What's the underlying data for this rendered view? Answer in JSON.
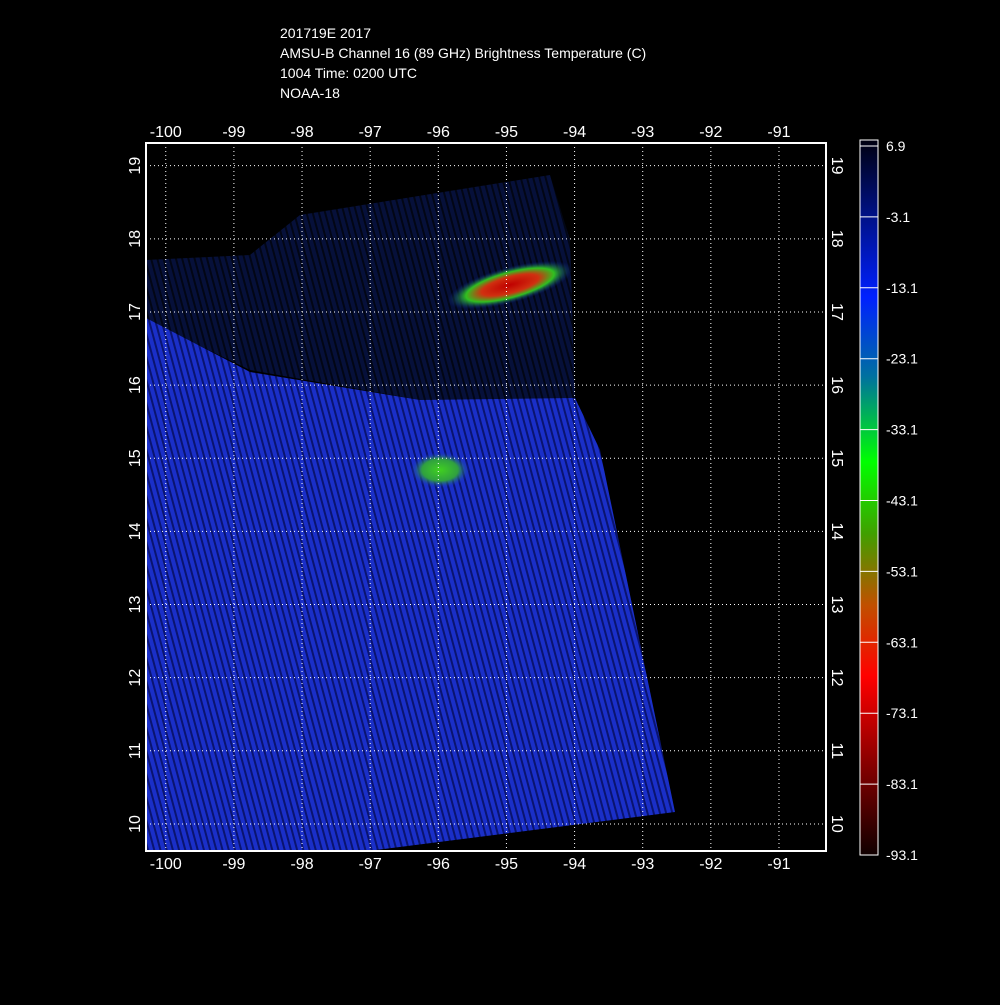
{
  "header": {
    "lines": [
      "201719E 2017",
      "AMSU-B Channel 16 (89 GHz) Brightness Temperature (C)",
      "1004 Time: 0200 UTC",
      "NOAA-18"
    ]
  },
  "map": {
    "xlim": [
      -100.29,
      -90.31
    ],
    "ylim": [
      9.63,
      19.31
    ],
    "xticks": [
      -100,
      -99,
      -98,
      -97,
      -96,
      -95,
      -94,
      -93,
      -92,
      -91
    ],
    "yticks": [
      10,
      11,
      12,
      13,
      14,
      15,
      16,
      17,
      18,
      19
    ],
    "grid": true
  },
  "colorbar": {
    "clim": [
      -93.1,
      6.9
    ],
    "ticks": [
      6.9,
      -3.1,
      -13.1,
      -23.1,
      -33.1,
      -43.1,
      -53.1,
      -63.1,
      -73.1,
      -83.1,
      -93.1
    ]
  }
}
